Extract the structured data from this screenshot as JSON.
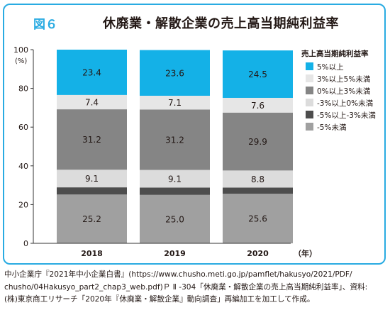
{
  "figure": {
    "label": "図６",
    "title": "休廃業・解散企業の売上高当期純利益率"
  },
  "colors": {
    "frame": "#29abe2",
    "title_label": "#29abe2",
    "text": "#231815"
  },
  "chart_data": {
    "type": "bar",
    "stacked": true,
    "categories": [
      "2018",
      "2019",
      "2020"
    ],
    "xunit": "（年）",
    "yunit": "(%)",
    "ylim": [
      0,
      100
    ],
    "yticks": [
      0,
      20,
      40,
      60,
      80,
      100
    ],
    "grid": false,
    "legend": {
      "title": "売上高当期純利益率",
      "placement": "right"
    },
    "series": [
      {
        "name": "-5%未満",
        "color": "#a0a0a0",
        "values": [
          25.2,
          25.0,
          25.6
        ],
        "labels": [
          "25.2",
          "25.0",
          "25.6"
        ]
      },
      {
        "name": "-5%以上-3%未満",
        "color": "#4d4d4d",
        "values": [
          3.7,
          3.8,
          3.2
        ],
        "labels": [
          "",
          "",
          ""
        ]
      },
      {
        "name": "-3%以上0%未満",
        "color": "#dcdcdc",
        "values": [
          9.1,
          9.1,
          8.8
        ],
        "labels": [
          "9.1",
          "9.1",
          "8.8"
        ]
      },
      {
        "name": "0%以上3%未満",
        "color": "#858585",
        "values": [
          31.2,
          31.2,
          29.9
        ],
        "labels": [
          "31.2",
          "31.2",
          "29.9"
        ]
      },
      {
        "name": "3%以上5%未満",
        "color": "#e6e6e6",
        "values": [
          7.4,
          7.1,
          7.6
        ],
        "labels": [
          "7.4",
          "7.1",
          "7.6"
        ]
      },
      {
        "name": "5%以上",
        "color": "#14b1e7",
        "values": [
          23.4,
          23.6,
          24.5
        ],
        "labels": [
          "23.4",
          "23.6",
          "24.5"
        ]
      }
    ],
    "legend_order": [
      "5%以上",
      "3%以上5%未満",
      "0%以上3%未満",
      "-3%以上0%未満",
      "-5%以上-3%未満",
      "-5%未満"
    ]
  },
  "source": {
    "lines": [
      "中小企業庁『2021年中小企業白書』(https://www.chusho.meti.go.jp/pamflet/hakusyo/2021/PDF/",
      "chusho/04Hakusyo_part2_chap3_web.pdf)Ｐ Ⅱ -304「休廃業・解散企業の売上高当期純利益率」、資料:",
      "(株)東京商工リサーチ「2020年『休廃業・解散企業』動向調査」再編加工を加工して作成。"
    ]
  }
}
